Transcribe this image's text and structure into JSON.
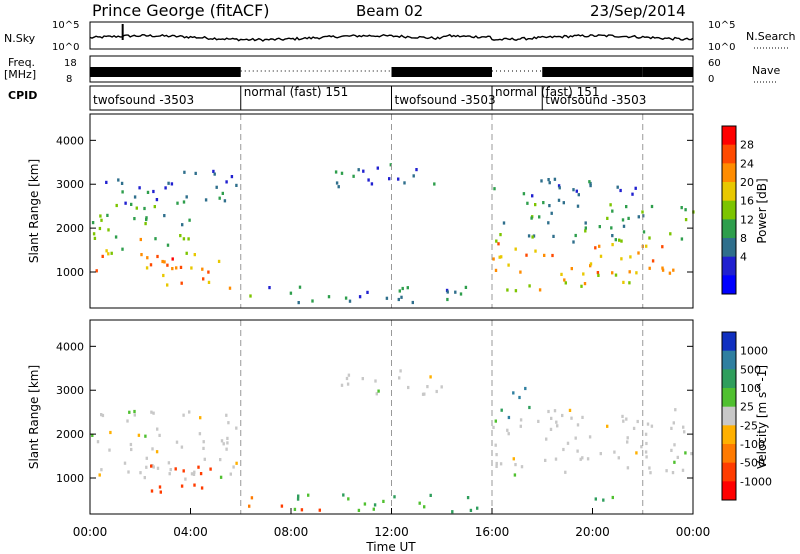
{
  "header": {
    "station": "Prince George (fitACF)",
    "beam": "Beam 02",
    "date": "23/Sep/2014"
  },
  "noise_panel": {
    "left_label": "N.Sky",
    "left_ticks": [
      "10^5",
      "10^0"
    ],
    "right_label": "N.Search",
    "right_ticks": [
      "10^5",
      "10^0"
    ]
  },
  "freq_panel": {
    "left_label_line1": "Freq.",
    "left_label_line2": "[MHz]",
    "left_ticks": [
      "18",
      "8"
    ],
    "right_label": "Nave",
    "right_ticks": [
      "60",
      "0"
    ]
  },
  "cpid": {
    "label": "CPID",
    "segments": [
      {
        "start": 0,
        "end": 6,
        "text": "twofsound -3503"
      },
      {
        "start": 6,
        "end": 12,
        "text": "normal (fast) 151"
      },
      {
        "start": 12,
        "end": 16,
        "text": "twofsound -3503"
      },
      {
        "start": 16,
        "end": 18,
        "text": "normal (fast) 151"
      },
      {
        "start": 18,
        "end": 22,
        "text": "twofsound -3503"
      }
    ]
  },
  "power_colorbar": {
    "label": "Power [dB]",
    "ticks": [
      "28",
      "24",
      "20",
      "16",
      "12",
      "8",
      "4"
    ],
    "colors": [
      "#ff0000",
      "#ff4a00",
      "#ff8c00",
      "#e8c800",
      "#7cc400",
      "#2e9e4c",
      "#2f6f8c",
      "#2020d0",
      "#0000ff"
    ]
  },
  "velocity_colorbar": {
    "label": "Velocity [m s^-1]",
    "ticks": [
      "1000",
      "500",
      "100",
      "25",
      "-25",
      "-100",
      "-500",
      "-1000"
    ],
    "colors": [
      "#1030c0",
      "#2f7fa0",
      "#2f9e5c",
      "#50c030",
      "#c8c8c8",
      "#ffb000",
      "#ff7a00",
      "#ff3c00",
      "#ff0000"
    ]
  },
  "x_axis": {
    "label": "Time UT",
    "ticks": [
      "00:00",
      "04:00",
      "08:00",
      "12:00",
      "16:00",
      "20:00",
      "00:00"
    ]
  },
  "y_axis": {
    "label": "Slant Range [km]",
    "ticks": [
      "4000",
      "3000",
      "2000",
      "1000"
    ]
  },
  "chart_data": [
    {
      "type": "heatmap",
      "panel": "power",
      "xlim_hours": [
        0,
        24
      ],
      "ylim_km": [
        180,
        4600
      ],
      "clim_db": [
        0,
        32
      ],
      "scatter_regions": [
        {
          "x0": 0.0,
          "x1": 4.5,
          "r0": 1000,
          "r1": 1400,
          "val": 26
        },
        {
          "x0": 0.0,
          "x1": 4.5,
          "r0": 1400,
          "r1": 2000,
          "val": 18
        },
        {
          "x0": 0.0,
          "x1": 4.5,
          "r0": 2000,
          "r1": 2600,
          "val": 13
        },
        {
          "x0": 2.2,
          "x1": 5.2,
          "r0": 700,
          "r1": 1300,
          "val": 24
        },
        {
          "x0": 0.5,
          "x1": 6.0,
          "r0": 2600,
          "r1": 3400,
          "val": 7
        },
        {
          "x0": 5.5,
          "x1": 6.6,
          "r0": 400,
          "r1": 700,
          "val": 20
        },
        {
          "x0": 7.0,
          "x1": 15.0,
          "r0": 250,
          "r1": 700,
          "val": 9
        },
        {
          "x0": 9.5,
          "x1": 14.0,
          "r0": 2900,
          "r1": 3500,
          "val": 7
        },
        {
          "x0": 16.0,
          "x1": 24.0,
          "r0": 1000,
          "r1": 1700,
          "val": 24
        },
        {
          "x0": 16.5,
          "x1": 22.0,
          "r0": 600,
          "r1": 1000,
          "val": 20
        },
        {
          "x0": 16.0,
          "x1": 24.0,
          "r0": 1700,
          "r1": 2600,
          "val": 12
        },
        {
          "x0": 16.0,
          "x1": 22.0,
          "r0": 2600,
          "r1": 3200,
          "val": 7
        }
      ]
    },
    {
      "type": "heatmap",
      "panel": "velocity",
      "xlim_hours": [
        0,
        24
      ],
      "ylim_km": [
        180,
        4600
      ],
      "clim_ms": [
        -1000,
        1000
      ],
      "scatter_regions": [
        {
          "x0": 0.0,
          "x1": 6.0,
          "r0": 1000,
          "r1": 2600,
          "val": 0
        },
        {
          "x0": 2.3,
          "x1": 5.0,
          "r0": 700,
          "r1": 1400,
          "val": -400
        },
        {
          "x0": 5.5,
          "x1": 6.5,
          "r0": 350,
          "r1": 650,
          "val": -150
        },
        {
          "x0": 7.5,
          "x1": 10.0,
          "r0": 300,
          "r1": 500,
          "val": -400
        },
        {
          "x0": 8.0,
          "x1": 15.5,
          "r0": 250,
          "r1": 650,
          "val": 60
        },
        {
          "x0": 9.5,
          "x1": 14.0,
          "r0": 2900,
          "r1": 3500,
          "val": 0
        },
        {
          "x0": 16.0,
          "x1": 24.0,
          "r0": 1100,
          "r1": 2600,
          "val": 0
        },
        {
          "x0": 19.5,
          "x1": 21.5,
          "r0": 500,
          "r1": 700,
          "val": 60
        },
        {
          "x0": 16.2,
          "x1": 17.5,
          "r0": 2400,
          "r1": 3100,
          "val": 300
        }
      ]
    }
  ]
}
